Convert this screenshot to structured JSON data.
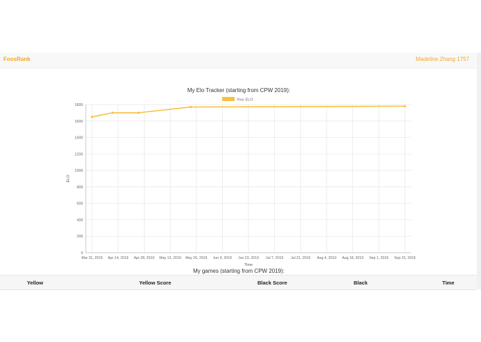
{
  "navbar": {
    "brand": "FoosRank",
    "user": "Madeline Zhang 1757"
  },
  "chart_title": "My Elo Tracker (starting from CPW 2019):",
  "games_title": "My games (starting from CPW 2019):",
  "table": {
    "columns": [
      "Yellow",
      "Yellow Score",
      "Black Score",
      "Black",
      "Time"
    ]
  },
  "colors": {
    "brand": "#f5a623",
    "series": "#f7c040",
    "grid": "#e6e6e6"
  },
  "chart_data": {
    "type": "line",
    "title": "My Elo Tracker (starting from CPW 2019):",
    "xlabel": "Time",
    "ylabel": "ELO",
    "ylim": [
      0,
      1800
    ],
    "yticks": [
      0,
      200,
      400,
      600,
      800,
      1000,
      1200,
      1400,
      1600,
      1800
    ],
    "x_tick_labels": [
      "Mar 31, 2019",
      "Apr 14, 2019",
      "Apr 28, 2019",
      "May 12, 2019",
      "May 26, 2019",
      "Jun 9, 2019",
      "Jun 23, 2019",
      "Jul 7, 2019",
      "Jul 21, 2019",
      "Aug 4, 2019",
      "Aug 18, 2019",
      "Sep 1, 2019",
      "Sep 15, 2019"
    ],
    "legend_position": "top",
    "grid": true,
    "series": [
      {
        "name": "Your ELO",
        "x": [
          "2019-03-31",
          "2019-04-11",
          "2019-04-25",
          "2019-05-23",
          "2019-09-15"
        ],
        "y": [
          1650,
          1700,
          1700,
          1770,
          1780
        ]
      }
    ]
  }
}
